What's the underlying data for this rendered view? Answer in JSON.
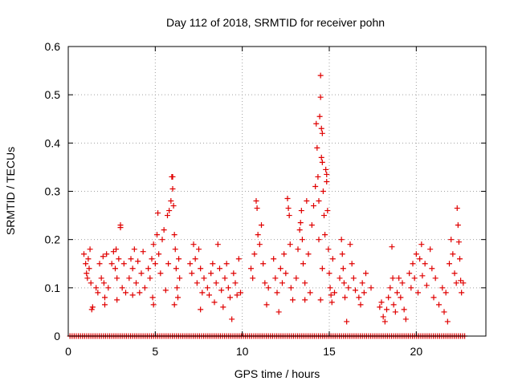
{
  "chart_data": {
    "type": "scatter",
    "title": "Day 112 of 2018, SRMTID for receiver pohn",
    "xlabel": "GPS time / hours",
    "ylabel": "SRMTID / TECUs",
    "xlim": [
      0,
      24
    ],
    "ylim": [
      0,
      0.6
    ],
    "xticks": [
      0,
      5,
      10,
      15,
      20
    ],
    "xtick_labels": [
      "0",
      "5",
      "10",
      "15",
      "20"
    ],
    "yticks": [
      0,
      0.1,
      0.2,
      0.3,
      0.4,
      0.5,
      0.6
    ],
    "ytick_labels": [
      "0",
      "0.1",
      "0.2",
      "0.3",
      "0.4",
      "0.5",
      "0.6"
    ],
    "grid": true,
    "marker": "+",
    "series": [
      {
        "name": "SRMTID",
        "color": "#e00000",
        "points": [
          [
            0.9,
            0.17
          ],
          [
            1.0,
            0.15
          ],
          [
            1.05,
            0.13
          ],
          [
            1.1,
            0.12
          ],
          [
            1.15,
            0.16
          ],
          [
            1.2,
            0.14
          ],
          [
            1.25,
            0.18
          ],
          [
            1.3,
            0.11
          ],
          [
            1.35,
            0.055
          ],
          [
            1.4,
            0.06
          ],
          [
            1.6,
            0.1
          ],
          [
            1.7,
            0.09
          ],
          [
            1.8,
            0.15
          ],
          [
            1.9,
            0.12
          ],
          [
            2.0,
            0.165
          ],
          [
            2.05,
            0.11
          ],
          [
            2.1,
            0.08
          ],
          [
            2.2,
            0.17
          ],
          [
            2.3,
            0.1
          ],
          [
            2.1,
            0.065
          ],
          [
            2.5,
            0.15
          ],
          [
            2.6,
            0.175
          ],
          [
            2.7,
            0.14
          ],
          [
            2.75,
            0.18
          ],
          [
            2.8,
            0.12
          ],
          [
            2.9,
            0.16
          ],
          [
            3.0,
            0.23
          ],
          [
            3.0,
            0.225
          ],
          [
            3.1,
            0.1
          ],
          [
            3.2,
            0.15
          ],
          [
            3.3,
            0.09
          ],
          [
            2.8,
            0.075
          ],
          [
            3.5,
            0.12
          ],
          [
            3.6,
            0.16
          ],
          [
            3.7,
            0.14
          ],
          [
            3.8,
            0.18
          ],
          [
            3.9,
            0.11
          ],
          [
            4.0,
            0.155
          ],
          [
            4.1,
            0.09
          ],
          [
            4.2,
            0.13
          ],
          [
            4.3,
            0.175
          ],
          [
            4.4,
            0.1
          ],
          [
            3.7,
            0.085
          ],
          [
            4.6,
            0.14
          ],
          [
            4.7,
            0.12
          ],
          [
            4.8,
            0.16
          ],
          [
            4.85,
            0.08
          ],
          [
            4.9,
            0.19
          ],
          [
            5.0,
            0.15
          ],
          [
            5.1,
            0.21
          ],
          [
            5.15,
            0.255
          ],
          [
            5.2,
            0.17
          ],
          [
            5.3,
            0.13
          ],
          [
            5.4,
            0.2
          ],
          [
            5.5,
            0.22
          ],
          [
            5.6,
            0.095
          ],
          [
            5.7,
            0.25
          ],
          [
            5.75,
            0.15
          ],
          [
            4.9,
            0.065
          ],
          [
            5.8,
            0.26
          ],
          [
            5.9,
            0.28
          ],
          [
            5.95,
            0.33
          ],
          [
            6.0,
            0.33
          ],
          [
            6.0,
            0.305
          ],
          [
            6.05,
            0.27
          ],
          [
            6.1,
            0.21
          ],
          [
            6.15,
            0.18
          ],
          [
            6.2,
            0.14
          ],
          [
            6.25,
            0.1
          ],
          [
            6.3,
            0.08
          ],
          [
            6.1,
            0.065
          ],
          [
            6.35,
            0.16
          ],
          [
            6.4,
            0.12
          ],
          [
            7.0,
            0.15
          ],
          [
            7.1,
            0.13
          ],
          [
            7.2,
            0.19
          ],
          [
            7.3,
            0.16
          ],
          [
            7.4,
            0.11
          ],
          [
            7.5,
            0.18
          ],
          [
            7.6,
            0.14
          ],
          [
            7.7,
            0.09
          ],
          [
            7.8,
            0.12
          ],
          [
            7.6,
            0.055
          ],
          [
            8.0,
            0.1
          ],
          [
            8.1,
            0.085
          ],
          [
            8.2,
            0.13
          ],
          [
            8.3,
            0.15
          ],
          [
            8.4,
            0.07
          ],
          [
            8.5,
            0.11
          ],
          [
            8.6,
            0.19
          ],
          [
            8.7,
            0.14
          ],
          [
            8.8,
            0.095
          ],
          [
            8.9,
            0.06
          ],
          [
            9.0,
            0.12
          ],
          [
            9.1,
            0.15
          ],
          [
            9.2,
            0.1
          ],
          [
            9.3,
            0.08
          ],
          [
            9.4,
            0.035
          ],
          [
            9.5,
            0.13
          ],
          [
            9.6,
            0.11
          ],
          [
            9.7,
            0.085
          ],
          [
            9.8,
            0.16
          ],
          [
            9.9,
            0.09
          ],
          [
            10.5,
            0.14
          ],
          [
            10.6,
            0.12
          ],
          [
            10.7,
            0.17
          ],
          [
            10.8,
            0.28
          ],
          [
            10.85,
            0.265
          ],
          [
            10.9,
            0.21
          ],
          [
            11.0,
            0.19
          ],
          [
            11.1,
            0.23
          ],
          [
            11.2,
            0.15
          ],
          [
            11.3,
            0.11
          ],
          [
            11.4,
            0.065
          ],
          [
            11.5,
            0.1
          ],
          [
            11.8,
            0.16
          ],
          [
            11.9,
            0.12
          ],
          [
            12.0,
            0.09
          ],
          [
            12.1,
            0.05
          ],
          [
            12.2,
            0.14
          ],
          [
            12.3,
            0.11
          ],
          [
            12.4,
            0.17
          ],
          [
            12.5,
            0.13
          ],
          [
            12.6,
            0.285
          ],
          [
            12.65,
            0.265
          ],
          [
            12.7,
            0.25
          ],
          [
            12.75,
            0.19
          ],
          [
            12.8,
            0.1
          ],
          [
            12.9,
            0.075
          ],
          [
            13.1,
            0.12
          ],
          [
            13.2,
            0.18
          ],
          [
            13.3,
            0.22
          ],
          [
            13.35,
            0.235
          ],
          [
            13.4,
            0.26
          ],
          [
            13.45,
            0.2
          ],
          [
            13.5,
            0.15
          ],
          [
            13.6,
            0.11
          ],
          [
            13.7,
            0.28
          ],
          [
            13.8,
            0.17
          ],
          [
            13.9,
            0.09
          ],
          [
            13.6,
            0.075
          ],
          [
            14.0,
            0.23
          ],
          [
            14.1,
            0.27
          ],
          [
            14.2,
            0.31
          ],
          [
            14.25,
            0.44
          ],
          [
            14.3,
            0.39
          ],
          [
            14.35,
            0.33
          ],
          [
            14.4,
            0.28
          ],
          [
            14.45,
            0.455
          ],
          [
            14.5,
            0.54
          ],
          [
            14.5,
            0.495
          ],
          [
            14.55,
            0.43
          ],
          [
            14.6,
            0.42
          ],
          [
            14.55,
            0.37
          ],
          [
            14.6,
            0.36
          ],
          [
            14.65,
            0.3
          ],
          [
            14.7,
            0.25
          ],
          [
            14.4,
            0.2
          ],
          [
            14.5,
            0.075
          ],
          [
            14.6,
            0.14
          ],
          [
            14.75,
            0.21
          ],
          [
            14.8,
            0.345
          ],
          [
            14.85,
            0.335
          ],
          [
            14.85,
            0.32
          ],
          [
            14.9,
            0.26
          ],
          [
            14.95,
            0.18
          ],
          [
            15.0,
            0.13
          ],
          [
            15.05,
            0.1
          ],
          [
            15.1,
            0.085
          ],
          [
            15.15,
            0.07
          ],
          [
            15.2,
            0.16
          ],
          [
            15.3,
            0.09
          ],
          [
            15.6,
            0.12
          ],
          [
            15.7,
            0.2
          ],
          [
            15.75,
            0.17
          ],
          [
            15.8,
            0.14
          ],
          [
            15.85,
            0.11
          ],
          [
            15.9,
            0.08
          ],
          [
            16.0,
            0.03
          ],
          [
            16.1,
            0.1
          ],
          [
            16.2,
            0.19
          ],
          [
            16.3,
            0.15
          ],
          [
            16.4,
            0.12
          ],
          [
            16.5,
            0.095
          ],
          [
            16.7,
            0.08
          ],
          [
            16.8,
            0.065
          ],
          [
            16.9,
            0.11
          ],
          [
            17.0,
            0.09
          ],
          [
            17.1,
            0.13
          ],
          [
            17.4,
            0.1
          ],
          [
            17.9,
            0.06
          ],
          [
            18.0,
            0.07
          ],
          [
            18.1,
            0.04
          ],
          [
            18.2,
            0.03
          ],
          [
            18.3,
            0.055
          ],
          [
            18.4,
            0.08
          ],
          [
            18.5,
            0.1
          ],
          [
            18.6,
            0.185
          ],
          [
            18.65,
            0.12
          ],
          [
            18.7,
            0.065
          ],
          [
            18.8,
            0.05
          ],
          [
            18.9,
            0.09
          ],
          [
            19.0,
            0.12
          ],
          [
            19.1,
            0.08
          ],
          [
            19.2,
            0.11
          ],
          [
            19.3,
            0.055
          ],
          [
            19.4,
            0.035
          ],
          [
            19.6,
            0.13
          ],
          [
            19.7,
            0.1
          ],
          [
            19.8,
            0.15
          ],
          [
            19.9,
            0.12
          ],
          [
            20.0,
            0.17
          ],
          [
            20.1,
            0.09
          ],
          [
            20.2,
            0.16
          ],
          [
            20.3,
            0.19
          ],
          [
            20.35,
            0.125
          ],
          [
            20.5,
            0.15
          ],
          [
            20.6,
            0.105
          ],
          [
            20.8,
            0.18
          ],
          [
            20.9,
            0.14
          ],
          [
            21.0,
            0.08
          ],
          [
            21.1,
            0.12
          ],
          [
            21.3,
            0.065
          ],
          [
            21.5,
            0.1
          ],
          [
            21.6,
            0.05
          ],
          [
            21.7,
            0.09
          ],
          [
            21.8,
            0.03
          ],
          [
            21.9,
            0.15
          ],
          [
            22.0,
            0.2
          ],
          [
            22.1,
            0.17
          ],
          [
            22.2,
            0.13
          ],
          [
            22.3,
            0.11
          ],
          [
            22.35,
            0.265
          ],
          [
            22.4,
            0.23
          ],
          [
            22.45,
            0.195
          ],
          [
            22.5,
            0.16
          ],
          [
            22.55,
            0.115
          ],
          [
            22.6,
            0.09
          ],
          [
            22.7,
            0.11
          ]
        ],
        "baseline": {
          "y": 0,
          "x_from": 0.1,
          "x_to": 22.8,
          "step": 0.12
        }
      }
    ]
  }
}
